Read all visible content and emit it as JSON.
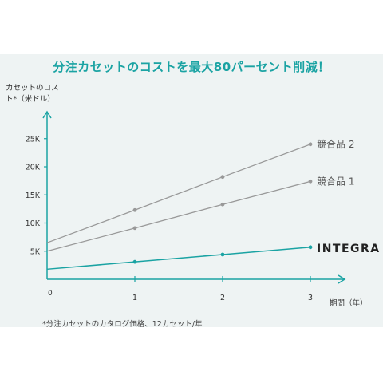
{
  "title": "分注カセットのコストを最大80パーセント削減！",
  "footnote": "*分注カセットのカタログ価格、12カセット/年",
  "chart_data": {
    "type": "line",
    "ylabel_line1": "カセットのコス",
    "ylabel_line2": "ト*（米ドル）",
    "xlabel": "期間（年）",
    "x": [
      0,
      1,
      2,
      3
    ],
    "x_ticks": [
      "1",
      "2",
      "3"
    ],
    "y_ticks": [
      "5K",
      "10K",
      "15K",
      "20K",
      "25K"
    ],
    "y_tick_values": [
      5000,
      10000,
      15000,
      20000,
      25000
    ],
    "origin_label": "0",
    "xlim": [
      0,
      3.2
    ],
    "ylim": [
      0,
      30000
    ],
    "grid": false,
    "series": [
      {
        "name": "競合品 2",
        "values": [
          6500,
          12300,
          18200,
          24000
        ],
        "color": "#999999"
      },
      {
        "name": "競合品 1",
        "values": [
          5000,
          9100,
          13300,
          17400
        ],
        "color": "#999999"
      },
      {
        "name": "INTEGRA",
        "values": [
          1800,
          3100,
          4400,
          5700
        ],
        "color": "#1aa3a3"
      }
    ]
  }
}
